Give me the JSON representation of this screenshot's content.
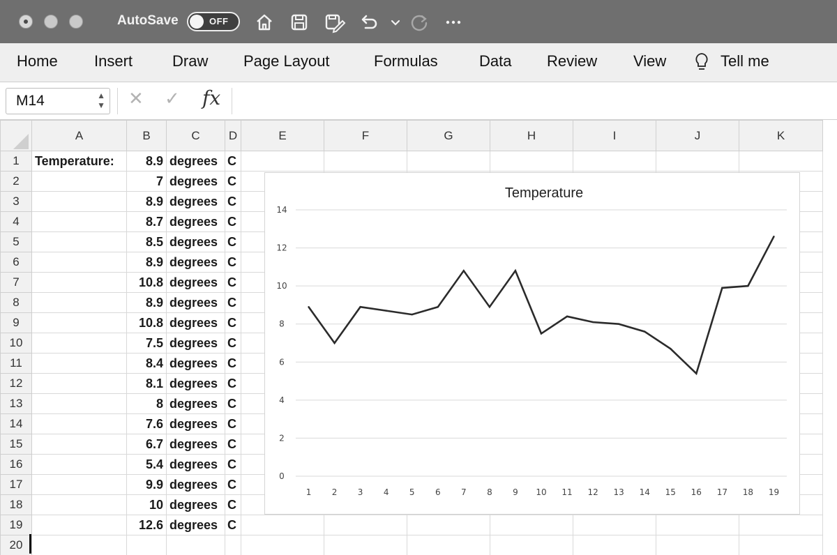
{
  "titlebar": {
    "autosave_label": "AutoSave",
    "autosave_state": "OFF",
    "icons": [
      "home-icon",
      "save-icon",
      "save-as-icon",
      "undo-icon",
      "dropdown-chevron-icon",
      "redo-icon",
      "more-icon"
    ]
  },
  "ribbon": {
    "tabs": [
      "Home",
      "Insert",
      "Draw",
      "Page Layout",
      "Formulas",
      "Data",
      "Review",
      "View"
    ],
    "tell_me": "Tell me"
  },
  "formula_bar": {
    "name_box": "M14",
    "fx": "fx",
    "content": ""
  },
  "sheet": {
    "columns": [
      "A",
      "B",
      "C",
      "D",
      "E",
      "F",
      "G",
      "H",
      "I",
      "J",
      "K"
    ],
    "rows": [
      {
        "n": "1",
        "a": "Temperature:",
        "b": "8.9",
        "c": "degrees",
        "d": "C"
      },
      {
        "n": "2",
        "a": "",
        "b": "7",
        "c": "degrees",
        "d": "C"
      },
      {
        "n": "3",
        "a": "",
        "b": "8.9",
        "c": "degrees",
        "d": "C"
      },
      {
        "n": "4",
        "a": "",
        "b": "8.7",
        "c": "degrees",
        "d": "C"
      },
      {
        "n": "5",
        "a": "",
        "b": "8.5",
        "c": "degrees",
        "d": "C"
      },
      {
        "n": "6",
        "a": "",
        "b": "8.9",
        "c": "degrees",
        "d": "C"
      },
      {
        "n": "7",
        "a": "",
        "b": "10.8",
        "c": "degrees",
        "d": "C"
      },
      {
        "n": "8",
        "a": "",
        "b": "8.9",
        "c": "degrees",
        "d": "C"
      },
      {
        "n": "9",
        "a": "",
        "b": "10.8",
        "c": "degrees",
        "d": "C"
      },
      {
        "n": "10",
        "a": "",
        "b": "7.5",
        "c": "degrees",
        "d": "C"
      },
      {
        "n": "11",
        "a": "",
        "b": "8.4",
        "c": "degrees",
        "d": "C"
      },
      {
        "n": "12",
        "a": "",
        "b": "8.1",
        "c": "degrees",
        "d": "C"
      },
      {
        "n": "13",
        "a": "",
        "b": "8",
        "c": "degrees",
        "d": "C"
      },
      {
        "n": "14",
        "a": "",
        "b": "7.6",
        "c": "degrees",
        "d": "C"
      },
      {
        "n": "15",
        "a": "",
        "b": "6.7",
        "c": "degrees",
        "d": "C"
      },
      {
        "n": "16",
        "a": "",
        "b": "5.4",
        "c": "degrees",
        "d": "C"
      },
      {
        "n": "17",
        "a": "",
        "b": "9.9",
        "c": "degrees",
        "d": "C"
      },
      {
        "n": "18",
        "a": "",
        "b": "10",
        "c": "degrees",
        "d": "C"
      },
      {
        "n": "19",
        "a": "",
        "b": "12.6",
        "c": "degrees",
        "d": "C"
      },
      {
        "n": "20",
        "a": "",
        "b": "",
        "c": "",
        "d": ""
      }
    ]
  },
  "chart_data": {
    "type": "line",
    "title": "Temperature",
    "xlabel": "",
    "ylabel": "",
    "categories": [
      "1",
      "2",
      "3",
      "4",
      "5",
      "6",
      "7",
      "8",
      "9",
      "10",
      "11",
      "12",
      "13",
      "14",
      "15",
      "16",
      "17",
      "18",
      "19"
    ],
    "series": [
      {
        "values": [
          8.9,
          7,
          8.9,
          8.7,
          8.5,
          8.9,
          10.8,
          8.9,
          10.8,
          7.5,
          8.4,
          8.1,
          8,
          7.6,
          6.7,
          5.4,
          9.9,
          10,
          12.6
        ]
      }
    ],
    "ylim": [
      0,
      14
    ],
    "yticks": [
      0,
      2,
      4,
      6,
      8,
      10,
      12,
      14
    ],
    "grid": true,
    "line_color": "#2b2b2b",
    "gridline_color": "#d9d9d9"
  }
}
